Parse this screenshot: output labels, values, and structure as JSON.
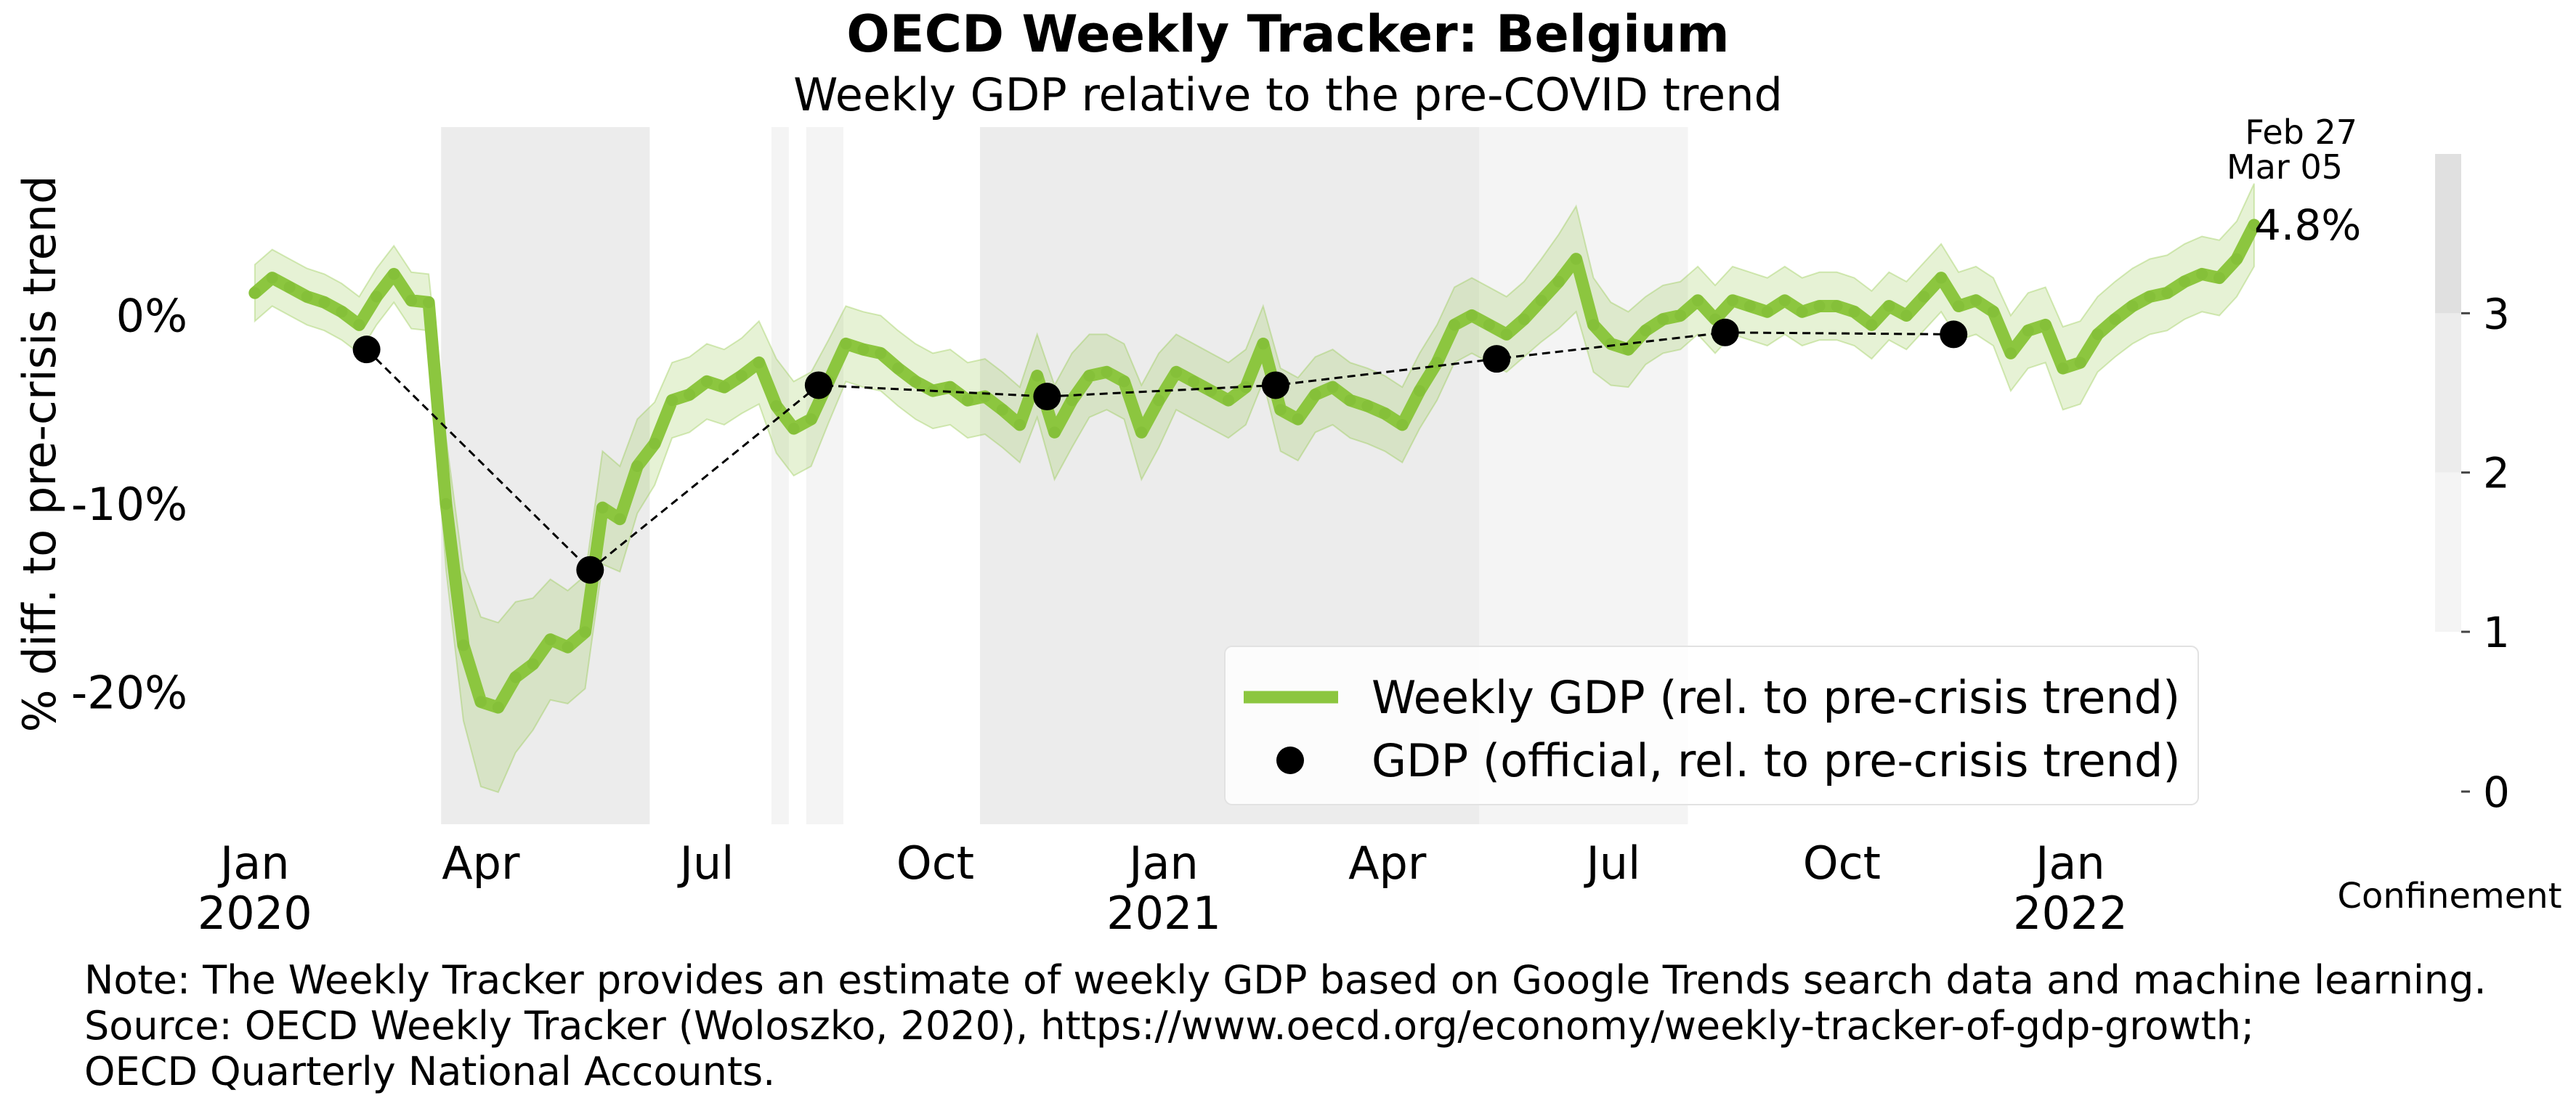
{
  "chart_data": {
    "type": "line",
    "title": "OECD Weekly Tracker: Belgium",
    "subtitle": "Weekly GDP relative to the pre-COVID trend",
    "ylabel": "% diff. to pre-crisis trend",
    "ylim": [
      -27,
      10
    ],
    "xlim": [
      "2019-12-23",
      "2022-03-21"
    ],
    "y_ticks": [
      {
        "value": 0,
        "label": "0%"
      },
      {
        "value": -10,
        "label": "-10%"
      },
      {
        "value": -20,
        "label": "-20%"
      }
    ],
    "x_ticks": [
      {
        "date": "2020-01-01",
        "label": "Jan",
        "label2": "2020"
      },
      {
        "date": "2020-04-01",
        "label": "Apr",
        "label2": ""
      },
      {
        "date": "2020-07-01",
        "label": "Jul",
        "label2": ""
      },
      {
        "date": "2020-10-01",
        "label": "Oct",
        "label2": ""
      },
      {
        "date": "2021-01-01",
        "label": "Jan",
        "label2": "2021"
      },
      {
        "date": "2021-04-01",
        "label": "Apr",
        "label2": ""
      },
      {
        "date": "2021-07-01",
        "label": "Jul",
        "label2": ""
      },
      {
        "date": "2021-10-01",
        "label": "Oct",
        "label2": ""
      },
      {
        "date": "2022-01-01",
        "label": "Jan",
        "label2": "2022"
      }
    ],
    "series": [
      {
        "name": "Weekly GDP (rel. to pre-crisis trend)",
        "color": "#8cc63f",
        "start_date": "2020-01-01",
        "step_days": 7,
        "values": [
          1.2,
          2.0,
          1.5,
          1.0,
          0.7,
          0.2,
          -0.5,
          1.0,
          2.2,
          0.8,
          0.7,
          -10.0,
          -17.5,
          -20.5,
          -20.8,
          -19.2,
          -18.5,
          -17.2,
          -17.6,
          -16.8,
          -10.2,
          -10.8,
          -8.0,
          -6.8,
          -4.5,
          -4.2,
          -3.5,
          -3.8,
          -3.2,
          -2.5,
          -4.8,
          -6.0,
          -5.5,
          -3.5,
          -1.5,
          -1.8,
          -2.0,
          -2.8,
          -3.5,
          -4.0,
          -3.8,
          -4.5,
          -4.3,
          -5.0,
          -5.8,
          -3.2,
          -6.2,
          -4.5,
          -3.2,
          -3.0,
          -3.5,
          -6.2,
          -4.5,
          -3.0,
          -3.5,
          -4.0,
          -4.5,
          -3.8,
          -1.5,
          -5.0,
          -5.5,
          -4.2,
          -3.8,
          -4.5,
          -4.8,
          -5.2,
          -5.8,
          -4.0,
          -2.5,
          -0.5,
          0.0,
          -0.5,
          -1.0,
          -0.2,
          0.8,
          1.8,
          3.0,
          -0.5,
          -1.5,
          -1.8,
          -0.8,
          -0.2,
          0.0,
          0.8,
          -0.2,
          0.8,
          0.5,
          0.2,
          0.8,
          0.2,
          0.5,
          0.5,
          0.2,
          -0.5,
          0.5,
          0.0,
          1.0,
          2.0,
          0.5,
          0.8,
          0.2,
          -2.0,
          -0.8,
          -0.5,
          -2.8,
          -2.5,
          -1.0,
          -0.2,
          0.5,
          1.0,
          1.2,
          1.8,
          2.2,
          2.0,
          3.0,
          4.8
        ],
        "band_halfwidth": [
          1.5,
          1.5,
          1.5,
          1.5,
          1.5,
          1.5,
          1.5,
          1.5,
          1.5,
          1.5,
          1.5,
          3.5,
          4.0,
          4.5,
          4.5,
          4.0,
          3.5,
          3.2,
          3.0,
          3.0,
          3.0,
          2.8,
          2.5,
          2.2,
          2.0,
          2.0,
          2.0,
          2.0,
          2.0,
          2.2,
          2.5,
          2.5,
          2.5,
          2.2,
          2.0,
          2.0,
          2.0,
          2.0,
          2.0,
          2.0,
          2.0,
          2.0,
          2.0,
          2.0,
          2.0,
          2.2,
          2.5,
          2.5,
          2.2,
          2.0,
          2.0,
          2.5,
          2.5,
          2.0,
          2.0,
          2.0,
          2.0,
          2.0,
          2.0,
          2.2,
          2.2,
          2.0,
          2.0,
          2.0,
          2.0,
          2.0,
          2.0,
          2.0,
          2.0,
          2.0,
          2.0,
          2.0,
          2.0,
          2.0,
          2.2,
          2.5,
          2.8,
          2.5,
          2.2,
          2.0,
          1.8,
          1.8,
          1.8,
          1.8,
          1.8,
          1.8,
          1.8,
          1.8,
          1.8,
          1.8,
          1.8,
          1.8,
          1.8,
          1.8,
          1.8,
          1.8,
          1.8,
          1.8,
          1.8,
          1.8,
          1.8,
          2.0,
          2.0,
          2.0,
          2.2,
          2.2,
          2.0,
          2.0,
          2.0,
          2.0,
          2.0,
          2.0,
          2.0,
          2.0,
          2.0,
          2.2
        ]
      },
      {
        "name": "GDP (official, rel. to pre-crisis trend)",
        "color": "#000000",
        "points": [
          {
            "date": "2020-02-15",
            "value": -1.8
          },
          {
            "date": "2020-05-15",
            "value": -13.5
          },
          {
            "date": "2020-08-15",
            "value": -3.7
          },
          {
            "date": "2020-11-15",
            "value": -4.3
          },
          {
            "date": "2021-02-15",
            "value": -3.7
          },
          {
            "date": "2021-05-15",
            "value": -2.3
          },
          {
            "date": "2021-08-15",
            "value": -0.9
          },
          {
            "date": "2021-11-15",
            "value": -1.0
          }
        ]
      }
    ],
    "confinement": {
      "label": "Confinement",
      "ticks": [
        "0",
        "1",
        "2",
        "3"
      ],
      "colors": {
        "1": "#f4f4f4",
        "2": "#ececec",
        "3": "#e0e0e0"
      },
      "periods": [
        {
          "start": "2020-03-16",
          "end": "2020-06-08",
          "level": 2
        },
        {
          "start": "2020-07-27",
          "end": "2020-08-03",
          "level": 1
        },
        {
          "start": "2020-08-10",
          "end": "2020-08-25",
          "level": 1
        },
        {
          "start": "2020-10-19",
          "end": "2021-05-08",
          "level": 2
        },
        {
          "start": "2021-05-08",
          "end": "2021-07-31",
          "level": 1
        }
      ]
    },
    "annotation": {
      "date_line1": "Feb 27",
      "date_line2": "Mar 05",
      "value_label": "4.8%"
    },
    "legend_position": "lower-right",
    "grid": false
  },
  "note_lines": [
    "Note: The Weekly Tracker provides an estimate of weekly GDP based on Google Trends search data and machine learning.",
    "Source: OECD Weekly Tracker (Woloszko, 2020), https://www.oecd.org/economy/weekly-tracker-of-gdp-growth;",
    "OECD Quarterly National Accounts."
  ]
}
